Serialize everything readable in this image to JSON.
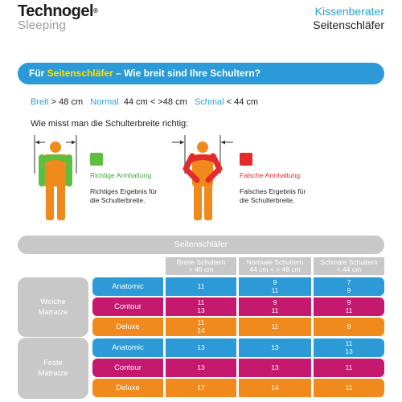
{
  "header": {
    "brand_line1": "Technogel",
    "brand_reg": "®",
    "brand_line2": "Sleeping",
    "right_line1": "Kissenberater",
    "right_line2": "Seitenschläfer"
  },
  "banner": {
    "prefix": "Für ",
    "highlight": "Seitenschläfer",
    "suffix": " – Wie breit sind Ihre Schultern?"
  },
  "sizes": {
    "k1": "Breit",
    "v1": " > 48 cm",
    "k2": "Normal",
    "v2": "44 cm < >48 cm",
    "k3": "Schmal",
    "v3": " < 44 cm"
  },
  "howto": "Wie misst man die Schulterbreite richtig:",
  "figures": {
    "correct_posture": "Richtige Armhaltung",
    "correct_result_1": "Richtiges Ergebnis für",
    "correct_result_2": "die Schulterbreite.",
    "wrong_posture": "Falsche Armhaltung",
    "wrong_result_1": "Falsches Ergebnis für",
    "wrong_result_2": "die Schulterbreite."
  },
  "colors": {
    "blue": "#2c9ad6",
    "magenta": "#c4196f",
    "orange": "#f08a1c",
    "green": "#5cbf3d",
    "red": "#e32b2b",
    "gray": "#c8c8c8",
    "yellow": "#ffe100"
  },
  "table": {
    "title": "Seitenschläfer",
    "columns": [
      {
        "l1": "Breite Schultern",
        "l2": "> 48 cm"
      },
      {
        "l1": "Normale Schultern",
        "l2": "44 cm < > 48 cm"
      },
      {
        "l1": "Schmale Schultern",
        "l2": "< 44 cm"
      }
    ],
    "groups": [
      {
        "l1": "Weiche",
        "l2": "Matratze"
      },
      {
        "l1": "Feste",
        "l2": "Matratze"
      }
    ],
    "rows": [
      {
        "label": "Anatomic",
        "c1": [
          "11"
        ],
        "c2": [
          "9",
          "11"
        ],
        "c3": [
          "7",
          "9"
        ]
      },
      {
        "label": "Contour",
        "c1": [
          "11",
          "13"
        ],
        "c2": [
          "9",
          "11"
        ],
        "c3": [
          "9",
          "11"
        ]
      },
      {
        "label": "Deluxe",
        "c1": [
          "11",
          "14"
        ],
        "c2": [
          "11"
        ],
        "c3": [
          "9"
        ]
      },
      {
        "label": "Anatomic",
        "c1": [
          "13"
        ],
        "c2": [
          "13"
        ],
        "c3": [
          "11",
          "13"
        ]
      },
      {
        "label": "Contour",
        "c1": [
          "13"
        ],
        "c2": [
          "13"
        ],
        "c3": [
          "11"
        ]
      },
      {
        "label": "Deluxe",
        "c1": [
          "17"
        ],
        "c2": [
          "14"
        ],
        "c3": [
          "11"
        ]
      }
    ]
  }
}
